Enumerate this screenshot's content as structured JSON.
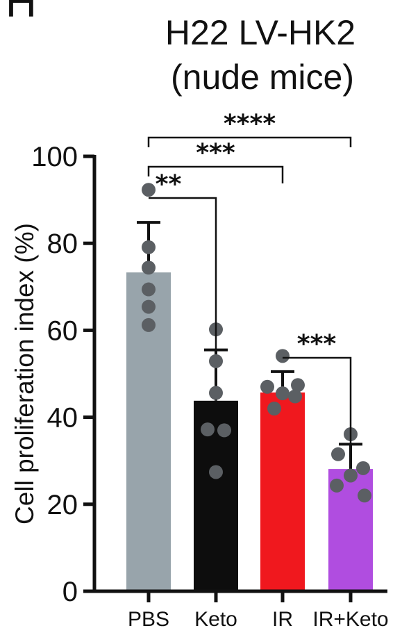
{
  "panel_letter": "H",
  "chart_data": {
    "type": "bar",
    "title": "H22 LV-HK2",
    "subtitle": "(nude mice)",
    "ylabel": "Cell proliferation index (%)",
    "xlabel": "",
    "ylim": [
      0,
      100
    ],
    "yticks": [
      0,
      20,
      40,
      60,
      80,
      100
    ],
    "categories": [
      "PBS",
      "Keto",
      "IR",
      "IR+Keto"
    ],
    "values": [
      73.3,
      43.8,
      45.7,
      28.1
    ],
    "errors": [
      11.5,
      11.7,
      4.8,
      5.7
    ],
    "bar_colors": [
      "#98a4ab",
      "#0d0d0d",
      "#f0181e",
      "#b04de0"
    ],
    "point_color": "#5b5f63",
    "points": [
      [
        92.3,
        79.1,
        74.4,
        69.4,
        65.4,
        61.2
      ],
      [
        60.2,
        52.9,
        45.6,
        37.2,
        37.0,
        27.4
      ],
      [
        54.1,
        47.4,
        47.0,
        45.5,
        44.8,
        42.0
      ],
      [
        36.1,
        31.5,
        28.3,
        26.6,
        24.3,
        22.0
      ]
    ],
    "significance": [
      {
        "from": "PBS",
        "to": "Keto",
        "label": "**"
      },
      {
        "from": "PBS",
        "to": "IR",
        "label": "***"
      },
      {
        "from": "PBS",
        "to": "IR+Keto",
        "label": "****"
      },
      {
        "from": "IR",
        "to": "IR+Keto",
        "label": "***"
      }
    ]
  }
}
